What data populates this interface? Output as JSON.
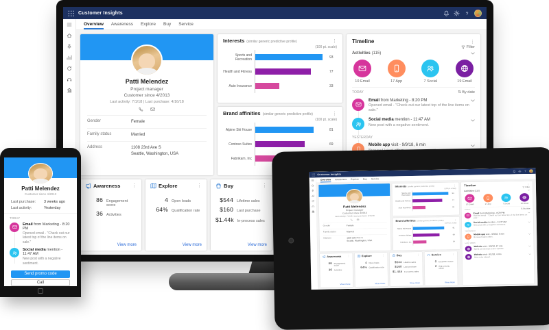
{
  "colors": {
    "topbar": "#1d3160",
    "accent": "#2196f3",
    "link": "#2b6bd8",
    "bar_blue": "#2196f3",
    "bar_purple": "#8e1fa8",
    "bar_magenta": "#d6499e",
    "circle_pink": "#d6359c",
    "circle_orange": "#ff8d5e",
    "circle_cyan": "#2bc4f0",
    "circle_purple": "#7a1fa2"
  },
  "app": {
    "title": "Customer Insights",
    "waffle_icon": "waffle",
    "top_icons": [
      "bell",
      "gear",
      "help"
    ],
    "menu_icon": "menu",
    "sidebar_icons": [
      "home",
      "pin",
      "chart",
      "sync",
      "headset",
      "org"
    ],
    "tabs": [
      "Overview",
      "Awareness",
      "Explore",
      "Buy",
      "Service"
    ],
    "profile": {
      "name": "Patti Melendez",
      "role": "Project manager",
      "since": "Customer since 4/2013",
      "activity_line": "Last activity: 7/1/18   |   Last purchase: 4/16/18",
      "contact_icons": [
        "call",
        "email"
      ],
      "fields": [
        {
          "label": "Gender",
          "value": "Female"
        },
        {
          "label": "Family status",
          "value": "Married"
        },
        {
          "label": "Address",
          "value": "1108 23rd Ave S",
          "value2": "Seattle, Washington, USA"
        }
      ]
    },
    "interests": {
      "title": "Interests",
      "subtitle": "(similar generic predictive profile)",
      "scale": "(100 pt. scale)",
      "items": [
        {
          "label": "Sports and Recreation",
          "value": 93,
          "color": "#2196f3"
        },
        {
          "label": "Health and Fitness",
          "value": 77,
          "color": "#8e1fa8"
        },
        {
          "label": "Auto Insurance",
          "value": 33,
          "color": "#d6499e"
        }
      ]
    },
    "brand_affinities": {
      "title": "Brand affinities",
      "subtitle": "(similar generic predictive profile)",
      "scale": "(100 pt. scale)",
      "items": [
        {
          "label": "Alpine Ski House",
          "value": 81,
          "color": "#2196f3"
        },
        {
          "label": "Contoso Suites",
          "value": 69,
          "color": "#8e1fa8"
        },
        {
          "label": "Fabrikam, Inc",
          "value": 34,
          "color": "#d6499e"
        }
      ]
    },
    "timeline": {
      "title": "Timeline",
      "filter": "Filter",
      "activities": "Activities",
      "count": "(115)",
      "summary": [
        {
          "label": "10 Email",
          "icon": "email",
          "color": "#d6359c"
        },
        {
          "label": "17 App",
          "icon": "phone",
          "color": "#ff8d5e"
        },
        {
          "label": "7 Social",
          "icon": "people",
          "color": "#2bc4f0"
        },
        {
          "label": "19 Email",
          "icon": "globe",
          "color": "#7a1fa2"
        }
      ],
      "today": "TODAY",
      "sort": "By date",
      "sort_icon": "sort",
      "entries": [
        {
          "icon": "email",
          "color": "#d6359c",
          "bold": "Email",
          "rest": " from Marketing - 8:20 PM",
          "desc": "Opened email - \"Check out our latest top of the line items on sale.\""
        },
        {
          "icon": "people",
          "color": "#2bc4f0",
          "bold": "Social media",
          "rest": " mention - 11:47 AM",
          "desc": "New post with a negative sentiment."
        },
        {
          "group": "YESTERDAY",
          "icon": "phone",
          "color": "#ff8d5e",
          "bold": "Mobile app",
          "rest": " visit - 9/9/18, 6 min",
          "desc": "Browsed latest offers."
        },
        {
          "group": "LAST WEEK",
          "icon": "globe",
          "color": "#7a1fa2",
          "bold": "Website",
          "rest": " visit - 9/5/18, 17 min",
          "desc": "Spent 10 min/visit on the website."
        },
        {
          "icon": "globe",
          "color": "#7a1fa2",
          "bold": "Website",
          "rest": " visit - 9/1/18, 4 min",
          "desc": "New order placed."
        }
      ]
    },
    "cards": [
      {
        "title": "Awareness",
        "icon": "megaphone",
        "link": "View more",
        "metrics": [
          {
            "value": "86",
            "label": "Engagement score"
          },
          {
            "value": "36",
            "label": "Activities"
          }
        ]
      },
      {
        "title": "Explore",
        "icon": "map",
        "link": "View more",
        "metrics": [
          {
            "value": "4",
            "label": "Open leads"
          },
          {
            "value": "64%",
            "label": "Qualification rate"
          }
        ]
      },
      {
        "title": "Buy",
        "icon": "bag",
        "link": "View more",
        "metrics": [
          {
            "value": "$544",
            "label": "Lifetime sales"
          },
          {
            "value": "$160",
            "label": "Last purchase"
          },
          {
            "value": "$1.44k",
            "label": "In-process sales"
          }
        ]
      },
      {
        "title": "Service",
        "icon": "headset",
        "link": "View more",
        "metrics": [
          {
            "value": "0",
            "label": "Escalated cases"
          },
          {
            "value": "2",
            "label": "High-priority cases"
          }
        ]
      }
    ]
  },
  "phone": {
    "name": "Patti Melendez",
    "since": "Customer since 4/2013",
    "rows": [
      {
        "label": "Last purchase:",
        "value": "3 weeks ago"
      },
      {
        "label": "Last activity:",
        "value": "Yesterday"
      }
    ],
    "today": "TODAY",
    "entries": [
      {
        "icon": "email",
        "color": "#d6359c",
        "bold": "Email",
        "rest": " from Marketing - 8:20 PM",
        "desc": "Opened email - \"Check out our latest top of the line items on sale.\""
      },
      {
        "icon": "people",
        "color": "#2bc4f0",
        "bold": "Social media",
        "rest": " mention - 11:47 AM",
        "desc": "New post with a negative sentiment."
      }
    ],
    "primary_button": "Send promo code",
    "secondary_button": "Call"
  },
  "chart_data": [
    {
      "type": "bar",
      "title": "Interests (similar generic predictive profile)",
      "categories": [
        "Sports and Recreation",
        "Health and Fitness",
        "Auto Insurance"
      ],
      "values": [
        93,
        77,
        33
      ],
      "xlabel": "",
      "ylabel": "",
      "xlim": [
        0,
        100
      ],
      "orientation": "horizontal"
    },
    {
      "type": "bar",
      "title": "Brand affinities (similar generic predictive profile)",
      "categories": [
        "Alpine Ski House",
        "Contoso Suites",
        "Fabrikam, Inc"
      ],
      "values": [
        81,
        69,
        34
      ],
      "xlabel": "",
      "ylabel": "",
      "xlim": [
        0,
        100
      ],
      "orientation": "horizontal"
    }
  ]
}
